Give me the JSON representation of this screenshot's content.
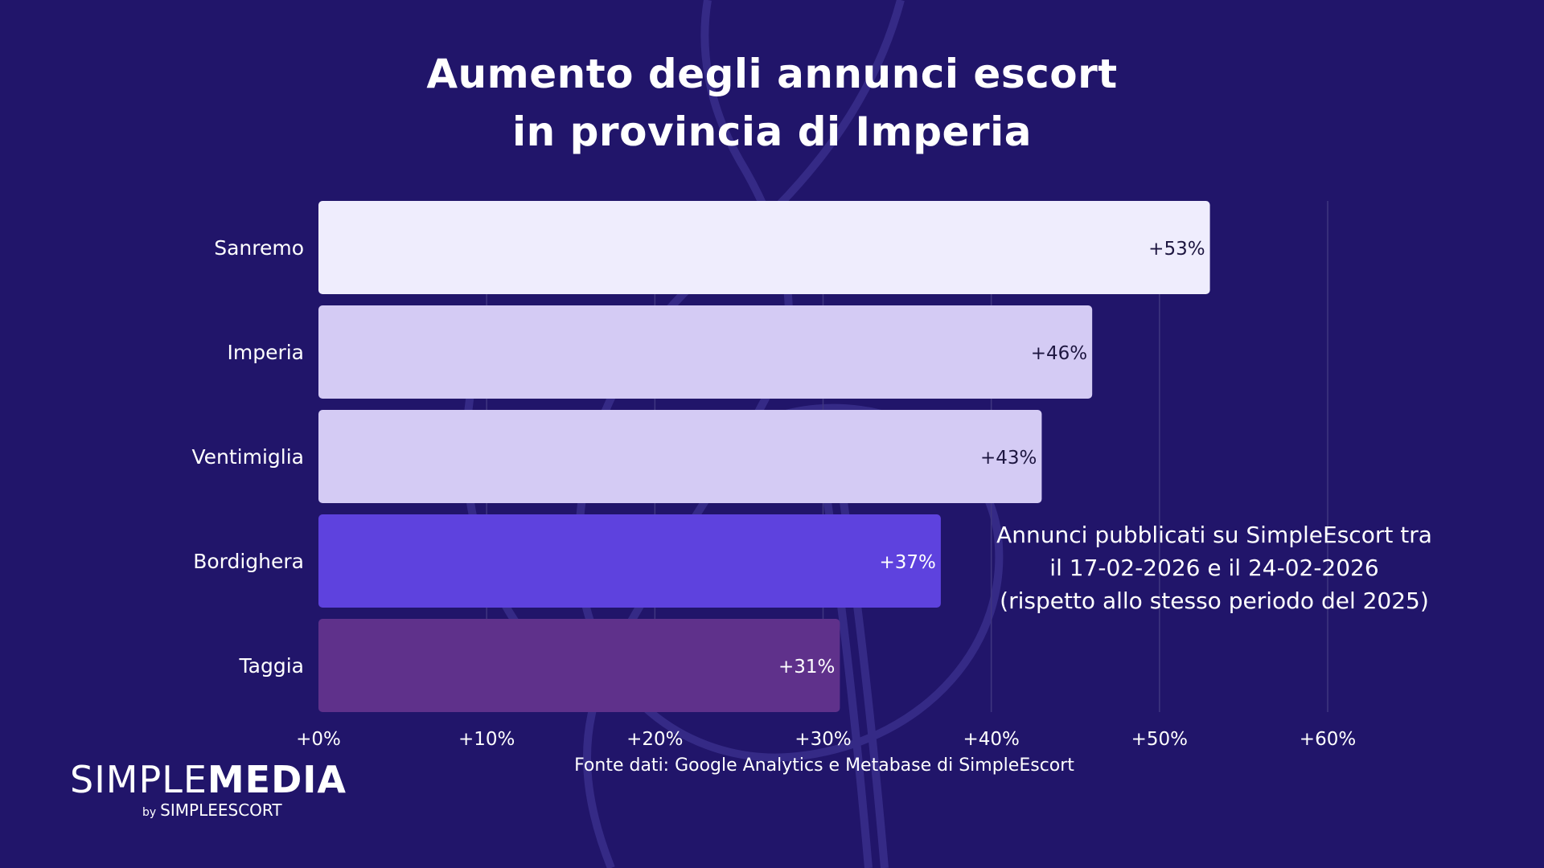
{
  "title_lines": [
    "Aumento degli annunci escort",
    "in provincia di Imperia"
  ],
  "annotation_lines": [
    "Annunci pubblicati su SimpleEscort tra",
    "il 17-02-2026 e il 24-02-2026",
    "(rispetto allo stesso periodo del 2025)"
  ],
  "source": "Fonte dati: Google Analytics e Metabase di SimpleEscort",
  "logo": {
    "simple": "SIMPLE",
    "media": "MEDIA",
    "by": "by",
    "brand": "SIMPLEESCORT"
  },
  "colors": {
    "background": "#21156a",
    "grid": "#3f3680",
    "bar_labels_dark": "#1d1640",
    "bar_labels_light": "#ffffff"
  },
  "chart_data": {
    "type": "bar",
    "orientation": "horizontal",
    "categories": [
      "Sanremo",
      "Imperia",
      "Ventimiglia",
      "Bordighera",
      "Taggia"
    ],
    "values": [
      53,
      46,
      43,
      37,
      31
    ],
    "data_labels": [
      "+53%",
      "+46%",
      "+43%",
      "+37%",
      "+31%"
    ],
    "bar_colors": [
      "#efedfd",
      "#d4cbf4",
      "#d4cbf4",
      "#5e42de",
      "#5f318b"
    ],
    "label_colors": [
      "dark",
      "dark",
      "dark",
      "light",
      "light"
    ],
    "xlim": [
      0,
      60
    ],
    "xticks": [
      0,
      10,
      20,
      30,
      40,
      50,
      60
    ],
    "xtick_labels": [
      "+0%",
      "+10%",
      "+20%",
      "+30%",
      "+40%",
      "+50%",
      "+60%"
    ],
    "grid": true,
    "legend": "none"
  }
}
